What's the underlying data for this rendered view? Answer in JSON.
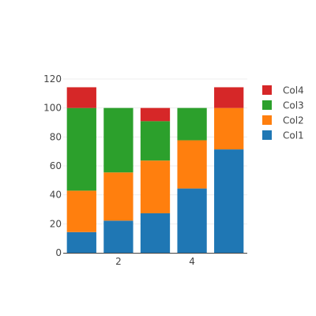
{
  "chart_data": {
    "type": "bar",
    "barmode": "stack",
    "x": [
      1,
      2,
      3,
      4,
      5
    ],
    "series": [
      {
        "name": "Col1",
        "color": "#1f77b4",
        "values": [
          14.3,
          22.2,
          27.3,
          44.4,
          71.4
        ]
      },
      {
        "name": "Col2",
        "color": "#ff7f0e",
        "values": [
          28.6,
          33.3,
          36.4,
          33.3,
          28.6
        ]
      },
      {
        "name": "Col3",
        "color": "#2ca02c",
        "values": [
          57.1,
          44.5,
          27.2,
          22.3,
          0
        ]
      },
      {
        "name": "Col4",
        "color": "#d62728",
        "values": [
          14.3,
          0,
          9.1,
          0,
          14.3
        ]
      }
    ],
    "x_tick_labels": [
      "2",
      "4"
    ],
    "x_tick_values": [
      2,
      4
    ],
    "y_tick_values": [
      0,
      20,
      40,
      60,
      80,
      100,
      120
    ],
    "y_tick_labels": [
      "0",
      "20",
      "40",
      "60",
      "80",
      "100",
      "120"
    ],
    "ylim": [
      0,
      120
    ],
    "xlim": [
      0.5,
      5.5
    ],
    "grid": true,
    "legend_position": "right",
    "title": "",
    "xlabel": "",
    "ylabel": ""
  }
}
